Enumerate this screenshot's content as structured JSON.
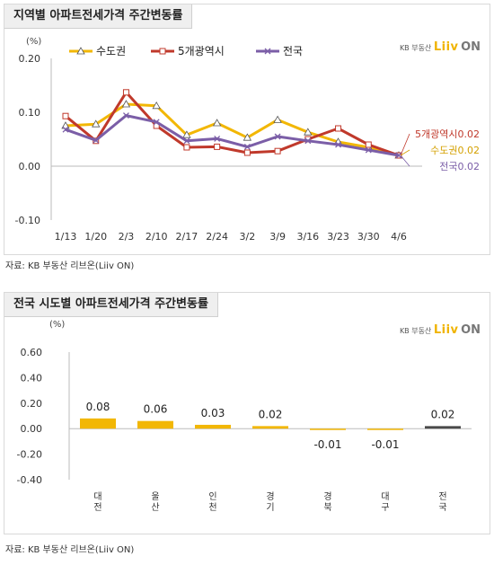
{
  "chart_data": [
    {
      "type": "line",
      "title": "지역별 아파트전세가격 주간변동률",
      "unit": "(%)",
      "x": [
        "1/13",
        "1/20",
        "2/3",
        "2/10",
        "2/17",
        "2/24",
        "3/2",
        "3/9",
        "3/16",
        "3/23",
        "3/30",
        "4/6"
      ],
      "ylim": [
        -0.1,
        0.2
      ],
      "yticks": [
        "0.20",
        "0.10",
        "0.00",
        "-0.10"
      ],
      "grid": false,
      "legend_position": "top",
      "series": [
        {
          "name": "수도권",
          "color": "#f2b705",
          "marker": "triangle",
          "values": [
            0.075,
            0.078,
            0.115,
            0.112,
            0.058,
            0.08,
            0.053,
            0.086,
            0.063,
            0.045,
            0.035,
            0.02
          ]
        },
        {
          "name": "5개광역시",
          "color": "#c0392b",
          "marker": "square",
          "values": [
            0.093,
            0.047,
            0.137,
            0.075,
            0.035,
            0.036,
            0.025,
            0.028,
            0.05,
            0.07,
            0.04,
            0.02
          ]
        },
        {
          "name": "전국",
          "color": "#7b5ea7",
          "marker": "x",
          "values": [
            0.068,
            0.048,
            0.094,
            0.082,
            0.047,
            0.051,
            0.036,
            0.055,
            0.047,
            0.04,
            0.03,
            0.02
          ]
        }
      ],
      "end_labels": [
        {
          "series": "5개광역시",
          "text": "5개광역시0.02",
          "color": "#c0392b"
        },
        {
          "series": "수도권",
          "text": "수도권0.02",
          "color": "#d4a000"
        },
        {
          "series": "전국",
          "text": "전국0.02",
          "color": "#7b5ea7"
        }
      ],
      "source": "자료: KB 부동산  리브온(Liiv ON)"
    },
    {
      "type": "bar",
      "title": "전국 시도별 아파트전세가격 주간변동률",
      "unit": "(%)",
      "categories": [
        "대전",
        "울산",
        "인천",
        "경기",
        "경북",
        "대구",
        "전국"
      ],
      "values": [
        0.08,
        0.06,
        0.03,
        0.02,
        -0.01,
        -0.01,
        0.02
      ],
      "value_labels": [
        "0.08",
        "0.06",
        "0.03",
        "0.02",
        "-0.01",
        "-0.01",
        "0.02"
      ],
      "colors": [
        "#f2b705",
        "#f2b705",
        "#f2b705",
        "#f2b705",
        "#f2b705",
        "#f2b705",
        "#4a4a4a"
      ],
      "ylim": [
        -0.4,
        0.6
      ],
      "yticks": [
        "0.60",
        "0.40",
        "0.20",
        "0.00",
        "-0.20",
        "-0.40"
      ],
      "grid": false,
      "source": "자료: KB 부동산  리브온(Liiv ON)"
    }
  ],
  "brand": {
    "kb": "KB 부동산",
    "logo_a": "Liiv",
    "logo_b": "ON"
  }
}
